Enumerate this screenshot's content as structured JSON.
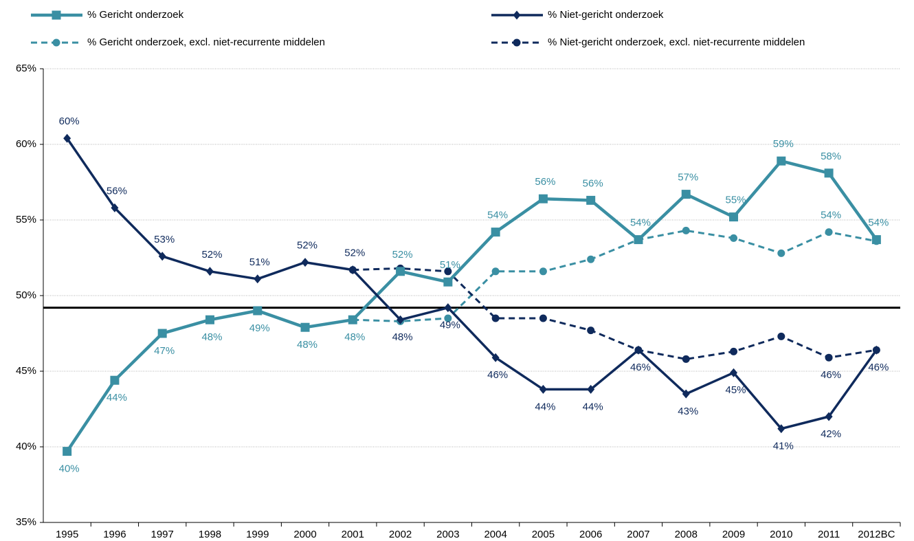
{
  "chart_data": {
    "type": "line",
    "categories": [
      "1995",
      "1996",
      "1997",
      "1998",
      "1999",
      "2000",
      "2001",
      "2002",
      "2003",
      "2004",
      "2005",
      "2006",
      "2007",
      "2008",
      "2009",
      "2010",
      "2011",
      "2012BC"
    ],
    "ylim": [
      35,
      65
    ],
    "yticks": [
      {
        "value": 35,
        "label": "35%"
      },
      {
        "value": 40,
        "label": "40%"
      },
      {
        "value": 45,
        "label": "45%"
      },
      {
        "value": 50,
        "label": "50%"
      },
      {
        "value": 55,
        "label": "55%"
      },
      {
        "value": 60,
        "label": "60%"
      },
      {
        "value": 65,
        "label": "65%"
      }
    ],
    "grid": true,
    "reference_line": 49.2,
    "series": [
      {
        "name": "% Gericht onderzoek",
        "color": "#3a8fa3",
        "marker": "square",
        "dash": false,
        "pair": 1,
        "values": [
          39.7,
          44.4,
          47.5,
          48.4,
          49.0,
          47.9,
          48.4,
          51.6,
          50.9,
          54.2,
          56.4,
          56.3,
          53.7,
          56.7,
          55.2,
          58.9,
          58.1,
          53.7
        ],
        "value_labels": [
          "40%",
          "44%",
          "47%",
          "48%",
          "49%",
          "48%",
          "48%",
          "52%",
          "51%",
          "54%",
          "56%",
          "56%",
          "54%",
          "57%",
          "55%",
          "59%",
          "58%",
          "54%"
        ]
      },
      {
        "name": "% Niet-gericht onderzoek",
        "color": "#0f2a5c",
        "marker": "diamond",
        "dash": false,
        "pair": 0,
        "values": [
          60.4,
          55.8,
          52.6,
          51.6,
          51.1,
          52.2,
          51.7,
          48.4,
          49.2,
          45.9,
          43.8,
          43.8,
          46.4,
          43.5,
          44.9,
          41.2,
          42.0,
          46.4
        ],
        "value_labels": [
          "60%",
          "56%",
          "53%",
          "52%",
          "51%",
          "52%",
          "52%",
          "48%",
          "49%",
          "46%",
          "44%",
          "44%",
          "46%",
          "43%",
          "45%",
          "41%",
          "42%",
          "46%"
        ]
      },
      {
        "name": "% Gericht onderzoek, excl. niet-recurrente middelen",
        "color": "#3a8fa3",
        "marker": "circle",
        "dash": true,
        "pair": 3,
        "values": [
          null,
          null,
          null,
          null,
          null,
          null,
          48.4,
          48.3,
          48.5,
          51.6,
          51.6,
          52.4,
          53.7,
          54.3,
          53.8,
          52.8,
          54.2,
          53.6
        ],
        "value_labels": [
          null,
          null,
          null,
          null,
          null,
          null,
          null,
          null,
          null,
          null,
          null,
          null,
          null,
          null,
          null,
          null,
          "54%",
          null
        ]
      },
      {
        "name": "% Niet-gericht onderzoek, excl. niet-recurrente middelen",
        "color": "#0f2a5c",
        "marker": "circle",
        "dash": true,
        "pair": 2,
        "values": [
          null,
          null,
          null,
          null,
          null,
          null,
          51.7,
          51.8,
          51.6,
          48.5,
          48.5,
          47.7,
          46.4,
          45.8,
          46.3,
          47.3,
          45.9,
          46.4
        ],
        "value_labels": [
          null,
          null,
          null,
          null,
          null,
          null,
          null,
          null,
          null,
          null,
          null,
          null,
          null,
          null,
          null,
          null,
          "46%",
          null
        ]
      }
    ]
  }
}
